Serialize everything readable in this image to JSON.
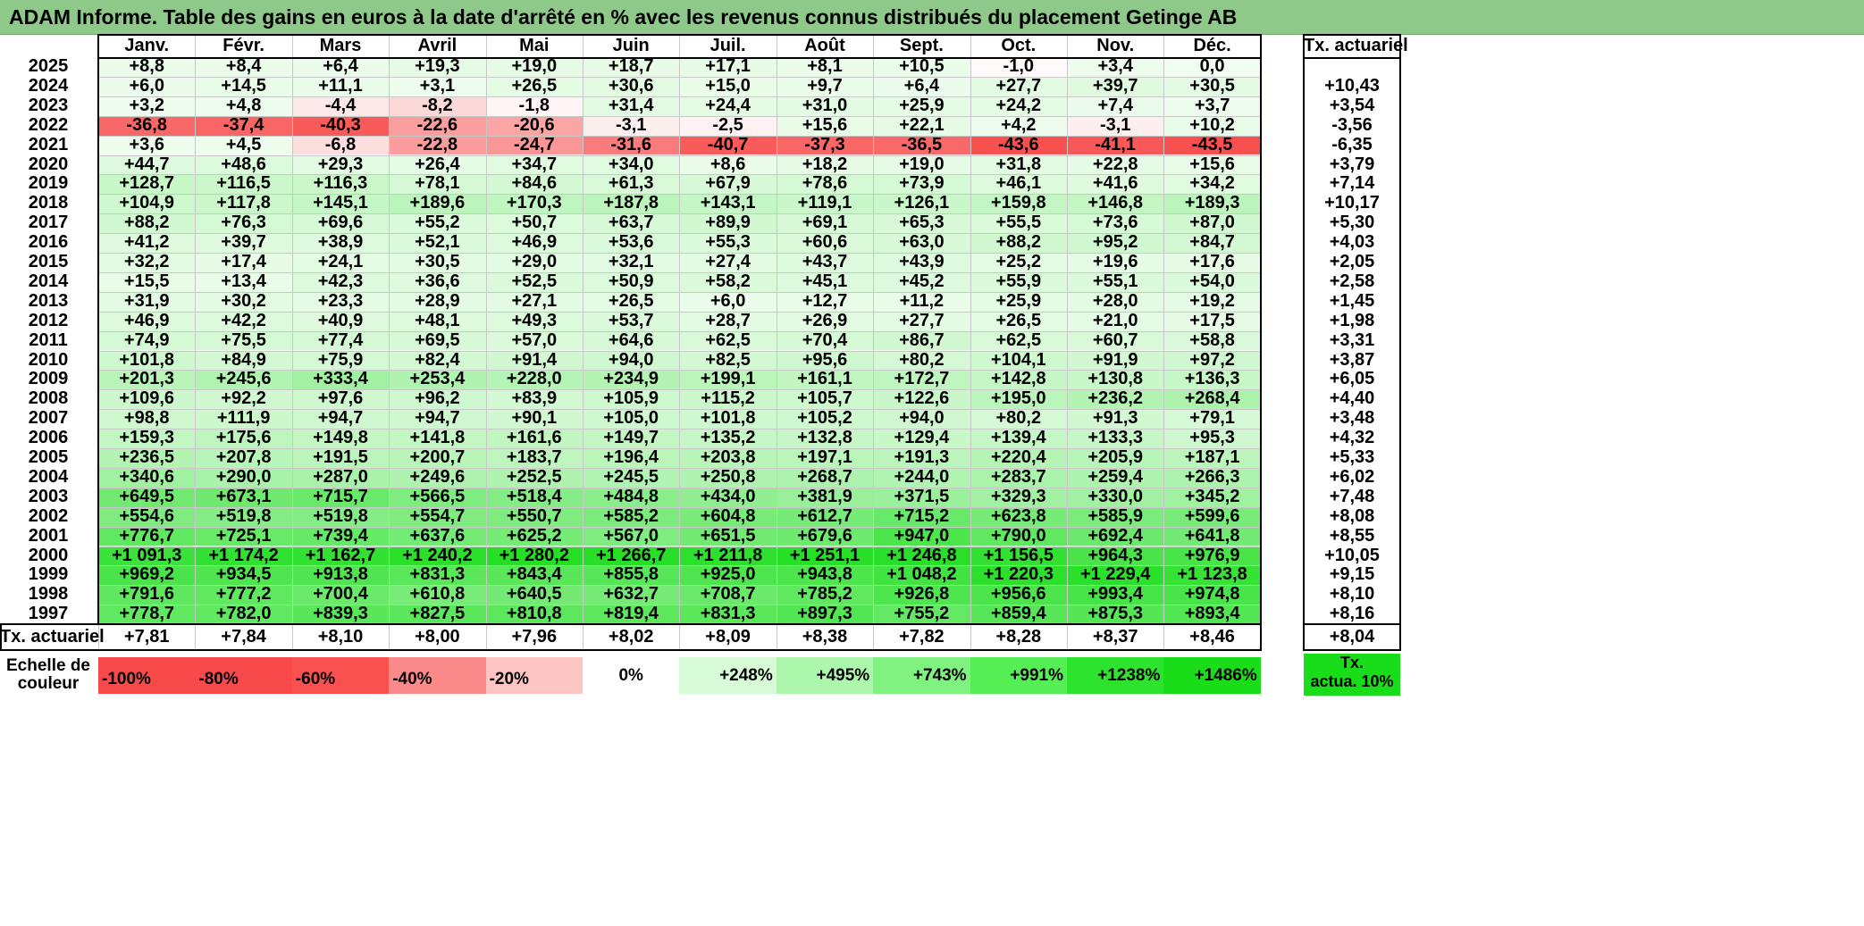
{
  "title": "ADAM Informe. Table des gains en euros à la date d'arrêté en % avec les revenus connus distribués du placement Getinge AB",
  "months": [
    "Janv.",
    "Févr.",
    "Mars",
    "Avril",
    "Mai",
    "Juin",
    "Juil.",
    "Août",
    "Sept.",
    "Oct.",
    "Nov.",
    "Déc."
  ],
  "tx_header": "Tx. actuariel",
  "rows": [
    {
      "year": "2025",
      "values": [
        "+8,8",
        "+8,4",
        "+6,4",
        "+19,3",
        "+19,0",
        "+18,7",
        "+17,1",
        "+8,1",
        "+10,5",
        "-1,0",
        "+3,4",
        "0,0"
      ],
      "tx": ""
    },
    {
      "year": "2024",
      "values": [
        "+6,0",
        "+14,5",
        "+11,1",
        "+3,1",
        "+26,5",
        "+30,6",
        "+15,0",
        "+9,7",
        "+6,4",
        "+27,7",
        "+39,7",
        "+30,5"
      ],
      "tx": "+10,43"
    },
    {
      "year": "2023",
      "values": [
        "+3,2",
        "+4,8",
        "-4,4",
        "-8,2",
        "-1,8",
        "+31,4",
        "+24,4",
        "+31,0",
        "+25,9",
        "+24,2",
        "+7,4",
        "+3,7"
      ],
      "tx": "+3,54"
    },
    {
      "year": "2022",
      "values": [
        "-36,8",
        "-37,4",
        "-40,3",
        "-22,6",
        "-20,6",
        "-3,1",
        "-2,5",
        "+15,6",
        "+22,1",
        "+4,2",
        "-3,1",
        "+10,2"
      ],
      "tx": "-3,56"
    },
    {
      "year": "2021",
      "values": [
        "+3,6",
        "+4,5",
        "-6,8",
        "-22,8",
        "-24,7",
        "-31,6",
        "-40,7",
        "-37,3",
        "-36,5",
        "-43,6",
        "-41,1",
        "-43,5"
      ],
      "tx": "-6,35"
    },
    {
      "year": "2020",
      "values": [
        "+44,7",
        "+48,6",
        "+29,3",
        "+26,4",
        "+34,7",
        "+34,0",
        "+8,6",
        "+18,2",
        "+19,0",
        "+31,8",
        "+22,8",
        "+15,6"
      ],
      "tx": "+3,79"
    },
    {
      "year": "2019",
      "values": [
        "+128,7",
        "+116,5",
        "+116,3",
        "+78,1",
        "+84,6",
        "+61,3",
        "+67,9",
        "+78,6",
        "+73,9",
        "+46,1",
        "+41,6",
        "+34,2"
      ],
      "tx": "+7,14"
    },
    {
      "year": "2018",
      "values": [
        "+104,9",
        "+117,8",
        "+145,1",
        "+189,6",
        "+170,3",
        "+187,8",
        "+143,1",
        "+119,1",
        "+126,1",
        "+159,8",
        "+146,8",
        "+189,3"
      ],
      "tx": "+10,17"
    },
    {
      "year": "2017",
      "values": [
        "+88,2",
        "+76,3",
        "+69,6",
        "+55,2",
        "+50,7",
        "+63,7",
        "+89,9",
        "+69,1",
        "+65,3",
        "+55,5",
        "+73,6",
        "+87,0"
      ],
      "tx": "+5,30"
    },
    {
      "year": "2016",
      "values": [
        "+41,2",
        "+39,7",
        "+38,9",
        "+52,1",
        "+46,9",
        "+53,6",
        "+55,3",
        "+60,6",
        "+63,0",
        "+88,2",
        "+95,2",
        "+84,7"
      ],
      "tx": "+4,03"
    },
    {
      "year": "2015",
      "values": [
        "+32,2",
        "+17,4",
        "+24,1",
        "+30,5",
        "+29,0",
        "+32,1",
        "+27,4",
        "+43,7",
        "+43,9",
        "+25,2",
        "+19,6",
        "+17,6"
      ],
      "tx": "+2,05"
    },
    {
      "year": "2014",
      "values": [
        "+15,5",
        "+13,4",
        "+42,3",
        "+36,6",
        "+52,5",
        "+50,9",
        "+58,2",
        "+45,1",
        "+45,2",
        "+55,9",
        "+55,1",
        "+54,0"
      ],
      "tx": "+2,58"
    },
    {
      "year": "2013",
      "values": [
        "+31,9",
        "+30,2",
        "+23,3",
        "+28,9",
        "+27,1",
        "+26,5",
        "+6,0",
        "+12,7",
        "+11,2",
        "+25,9",
        "+28,0",
        "+19,2"
      ],
      "tx": "+1,45"
    },
    {
      "year": "2012",
      "values": [
        "+46,9",
        "+42,2",
        "+40,9",
        "+48,1",
        "+49,3",
        "+53,7",
        "+28,7",
        "+26,9",
        "+27,7",
        "+26,5",
        "+21,0",
        "+17,5"
      ],
      "tx": "+1,98"
    },
    {
      "year": "2011",
      "values": [
        "+74,9",
        "+75,5",
        "+77,4",
        "+69,5",
        "+57,0",
        "+64,6",
        "+62,5",
        "+70,4",
        "+86,7",
        "+62,5",
        "+60,7",
        "+58,8"
      ],
      "tx": "+3,31"
    },
    {
      "year": "2010",
      "values": [
        "+101,8",
        "+84,9",
        "+75,9",
        "+82,4",
        "+91,4",
        "+94,0",
        "+82,5",
        "+95,6",
        "+80,2",
        "+104,1",
        "+91,9",
        "+97,2"
      ],
      "tx": "+3,87"
    },
    {
      "year": "2009",
      "values": [
        "+201,3",
        "+245,6",
        "+333,4",
        "+253,4",
        "+228,0",
        "+234,9",
        "+199,1",
        "+161,1",
        "+172,7",
        "+142,8",
        "+130,8",
        "+136,3"
      ],
      "tx": "+6,05"
    },
    {
      "year": "2008",
      "values": [
        "+109,6",
        "+92,2",
        "+97,6",
        "+96,2",
        "+83,9",
        "+105,9",
        "+115,2",
        "+105,7",
        "+122,6",
        "+195,0",
        "+236,2",
        "+268,4"
      ],
      "tx": "+4,40"
    },
    {
      "year": "2007",
      "values": [
        "+98,8",
        "+111,9",
        "+94,7",
        "+94,7",
        "+90,1",
        "+105,0",
        "+101,8",
        "+105,2",
        "+94,0",
        "+80,2",
        "+91,3",
        "+79,1"
      ],
      "tx": "+3,48"
    },
    {
      "year": "2006",
      "values": [
        "+159,3",
        "+175,6",
        "+149,8",
        "+141,8",
        "+161,6",
        "+149,7",
        "+135,2",
        "+132,8",
        "+129,4",
        "+139,4",
        "+133,3",
        "+95,3"
      ],
      "tx": "+4,32"
    },
    {
      "year": "2005",
      "values": [
        "+236,5",
        "+207,8",
        "+191,5",
        "+200,7",
        "+183,7",
        "+196,4",
        "+203,8",
        "+197,1",
        "+191,3",
        "+220,4",
        "+205,9",
        "+187,1"
      ],
      "tx": "+5,33"
    },
    {
      "year": "2004",
      "values": [
        "+340,6",
        "+290,0",
        "+287,0",
        "+249,6",
        "+252,5",
        "+245,5",
        "+250,8",
        "+268,7",
        "+244,0",
        "+283,7",
        "+259,4",
        "+266,3"
      ],
      "tx": "+6,02"
    },
    {
      "year": "2003",
      "values": [
        "+649,5",
        "+673,1",
        "+715,7",
        "+566,5",
        "+518,4",
        "+484,8",
        "+434,0",
        "+381,9",
        "+371,5",
        "+329,3",
        "+330,0",
        "+345,2"
      ],
      "tx": "+7,48"
    },
    {
      "year": "2002",
      "values": [
        "+554,6",
        "+519,8",
        "+519,8",
        "+554,7",
        "+550,7",
        "+585,2",
        "+604,8",
        "+612,7",
        "+715,2",
        "+623,8",
        "+585,9",
        "+599,6"
      ],
      "tx": "+8,08"
    },
    {
      "year": "2001",
      "values": [
        "+776,7",
        "+725,1",
        "+739,4",
        "+637,6",
        "+625,2",
        "+567,0",
        "+651,5",
        "+679,6",
        "+947,0",
        "+790,0",
        "+692,4",
        "+641,8"
      ],
      "tx": "+8,55"
    },
    {
      "year": "2000",
      "values": [
        "+1 091,3",
        "+1 174,2",
        "+1 162,7",
        "+1 240,2",
        "+1 280,2",
        "+1 266,7",
        "+1 211,8",
        "+1 251,1",
        "+1 246,8",
        "+1 156,5",
        "+964,3",
        "+976,9"
      ],
      "tx": "+10,05"
    },
    {
      "year": "1999",
      "values": [
        "+969,2",
        "+934,5",
        "+913,8",
        "+831,3",
        "+843,4",
        "+855,8",
        "+925,0",
        "+943,8",
        "+1 048,2",
        "+1 220,3",
        "+1 229,4",
        "+1 123,8"
      ],
      "tx": "+9,15"
    },
    {
      "year": "1998",
      "values": [
        "+791,6",
        "+777,2",
        "+700,4",
        "+610,8",
        "+640,5",
        "+632,7",
        "+708,7",
        "+785,2",
        "+926,8",
        "+956,6",
        "+993,4",
        "+974,8"
      ],
      "tx": "+8,10"
    },
    {
      "year": "1997",
      "values": [
        "+778,7",
        "+782,0",
        "+839,3",
        "+827,5",
        "+810,8",
        "+819,4",
        "+831,3",
        "+897,3",
        "+755,2",
        "+859,4",
        "+875,3",
        "+893,4"
      ],
      "tx": "+8,16"
    }
  ],
  "footer": {
    "label": "Tx. actuariel",
    "values": [
      "+7,81",
      "+7,84",
      "+8,10",
      "+8,00",
      "+7,96",
      "+8,02",
      "+8,09",
      "+8,38",
      "+7,82",
      "+8,28",
      "+8,37",
      "+8,46"
    ],
    "total": "+8,04"
  },
  "legend": {
    "label_line1": "Echelle de",
    "label_line2": "couleur",
    "items": [
      {
        "text": "-100%",
        "color": "#f84a4a"
      },
      {
        "text": "-80%",
        "color": "#f84a4a"
      },
      {
        "text": "-60%",
        "color": "#f95050"
      },
      {
        "text": "-40%",
        "color": "#fb8a8a"
      },
      {
        "text": "-20%",
        "color": "#fdc4c4"
      },
      {
        "text": "0%",
        "color": "#ffffff"
      },
      {
        "text": "+248%",
        "color": "#d6fbd6"
      },
      {
        "text": "+495%",
        "color": "#acf7ac"
      },
      {
        "text": "+743%",
        "color": "#7ff27f"
      },
      {
        "text": "+991%",
        "color": "#55ee55"
      },
      {
        "text": "+1238%",
        "color": "#2de32d"
      },
      {
        "text": "+1486%",
        "color": "#18dd18"
      }
    ],
    "tx_line1": "Tx.",
    "tx_line2": "actua. 10%",
    "tx_color": "#18dd18"
  },
  "colors": {
    "title_bg": "#8fc98a",
    "negative": "#f84a4a",
    "positive_max": "#18dd18"
  }
}
